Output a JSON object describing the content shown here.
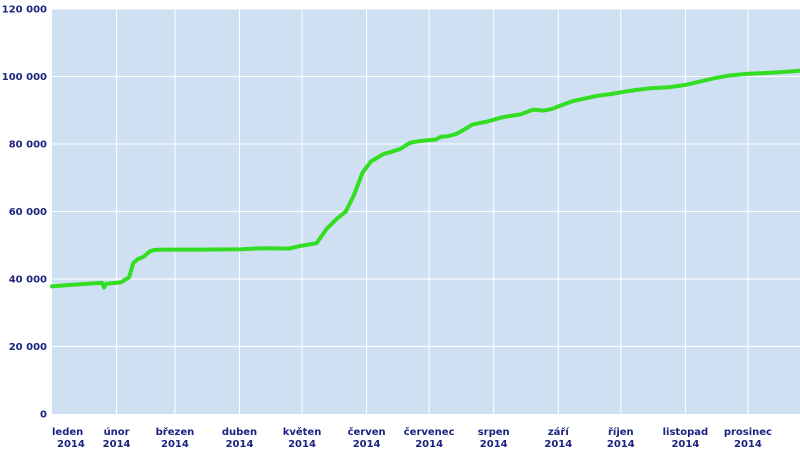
{
  "chart_data": {
    "type": "line",
    "title": "",
    "xlabel": "",
    "ylabel": "",
    "ylim": [
      0,
      120000
    ],
    "yticks": [
      0,
      20000,
      40000,
      60000,
      80000,
      100000,
      120000
    ],
    "ytick_labels": [
      "0",
      "20 000",
      "40 000",
      "60 000",
      "80 000",
      "100 000",
      "120 000"
    ],
    "months": [
      {
        "label": "leden",
        "year": "2014"
      },
      {
        "label": "únor",
        "year": "2014"
      },
      {
        "label": "březen",
        "year": "2014"
      },
      {
        "label": "duben",
        "year": "2014"
      },
      {
        "label": "květen",
        "year": "2014"
      },
      {
        "label": "červen",
        "year": "2014"
      },
      {
        "label": "červenec",
        "year": "2014"
      },
      {
        "label": "srpen",
        "year": "2014"
      },
      {
        "label": "září",
        "year": "2014"
      },
      {
        "label": "říjen",
        "year": "2014"
      },
      {
        "label": "listopad",
        "year": "2014"
      },
      {
        "label": "prosinec",
        "year": "2014"
      }
    ],
    "grid": true,
    "colors": {
      "background": "#cfe0f3",
      "grid": "#ffffff",
      "line": "#33dd22",
      "text": "#1a237e"
    },
    "series": [
      {
        "x": [
          "2014-01-01",
          "2014-01-11",
          "2014-01-21",
          "2014-01-25",
          "2014-01-26",
          "2014-01-27",
          "2014-02-03",
          "2014-02-07",
          "2014-02-09",
          "2014-02-11",
          "2014-02-14",
          "2014-02-17",
          "2014-02-19",
          "2014-02-23",
          "2014-03-12",
          "2014-04-02",
          "2014-04-08",
          "2014-04-14",
          "2014-04-25",
          "2014-04-28",
          "2014-05-01",
          "2014-05-04",
          "2014-05-08",
          "2014-05-13",
          "2014-05-18",
          "2014-05-22",
          "2014-05-26",
          "2014-05-30",
          "2014-06-03",
          "2014-06-09",
          "2014-06-13",
          "2014-06-17",
          "2014-06-22",
          "2014-06-28",
          "2014-07-04",
          "2014-07-07",
          "2014-07-10",
          "2014-07-14",
          "2014-07-17",
          "2014-07-22",
          "2014-07-29",
          "2014-08-05",
          "2014-08-10",
          "2014-08-14",
          "2014-08-20",
          "2014-08-25",
          "2014-08-29",
          "2014-09-03",
          "2014-09-08",
          "2014-09-14",
          "2014-09-20",
          "2014-09-26",
          "2014-10-01",
          "2014-10-08",
          "2014-10-15",
          "2014-10-24",
          "2014-11-01",
          "2014-11-08",
          "2014-11-15",
          "2014-11-22",
          "2014-12-01",
          "2014-12-08",
          "2014-12-15",
          "2014-12-22",
          "2014-12-26"
        ],
        "y": [
          37800,
          38300,
          38700,
          38900,
          37500,
          38600,
          39000,
          40500,
          44700,
          45800,
          46600,
          48200,
          48600,
          48700,
          48700,
          48800,
          49000,
          49100,
          49000,
          49500,
          49900,
          50200,
          50600,
          55000,
          58000,
          60000,
          65000,
          71500,
          74800,
          77000,
          77700,
          78500,
          80400,
          81000,
          81300,
          82200,
          82300,
          83000,
          84000,
          85800,
          86700,
          87900,
          88400,
          88800,
          90200,
          89900,
          90400,
          91600,
          92700,
          93500,
          94300,
          94800,
          95300,
          96000,
          96500,
          96800,
          97500,
          98500,
          99500,
          100300,
          100800,
          101000,
          101200,
          101500,
          101700
        ]
      }
    ]
  }
}
